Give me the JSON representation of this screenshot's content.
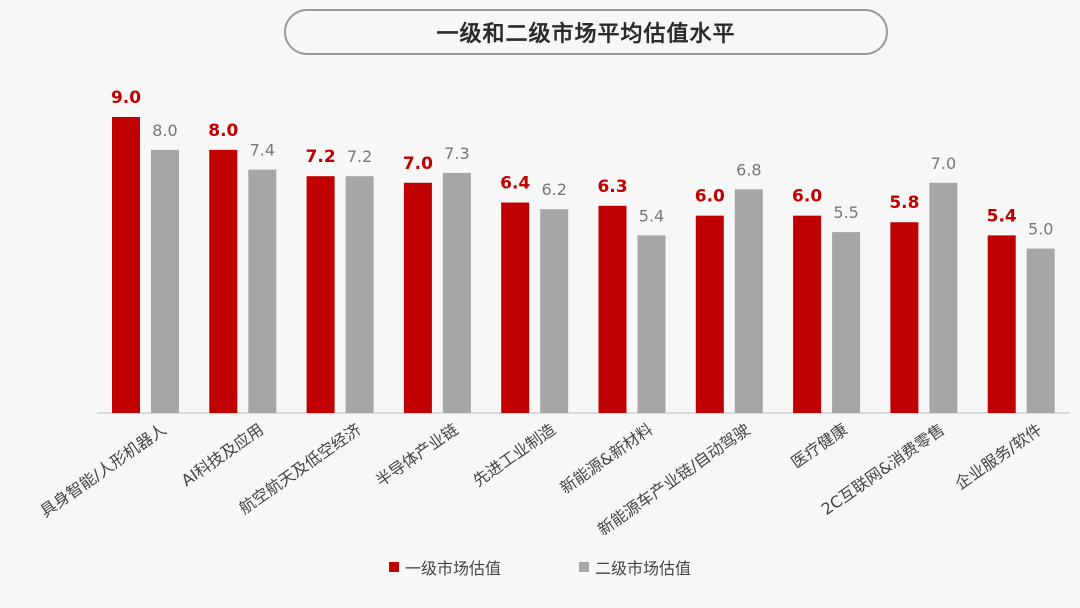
{
  "chart_data": {
    "type": "bar",
    "title": "一级和二级市场平均估值水平",
    "categories": [
      "具身智能/人形机器人",
      "AI科技及应用",
      "航空航天及低空经济",
      "半导体产业链",
      "先进工业制造",
      "新能源&新材料",
      "新能源车产业链/自动驾驶",
      "医疗健康",
      "2C互联网&消费零售",
      "企业服务/软件"
    ],
    "series": [
      {
        "name": "一级市场估值",
        "values": [
          9.0,
          8.0,
          7.2,
          7.0,
          6.4,
          6.3,
          6.0,
          6.0,
          5.8,
          5.4
        ],
        "color": "#c00000"
      },
      {
        "name": "二级市场估值",
        "values": [
          8.0,
          7.4,
          7.2,
          7.3,
          6.2,
          5.4,
          6.8,
          5.5,
          7.0,
          5.0
        ],
        "color": "#a6a6a6"
      }
    ],
    "ylim": [
      0,
      9
    ],
    "grid": false,
    "legend": "bottom"
  }
}
